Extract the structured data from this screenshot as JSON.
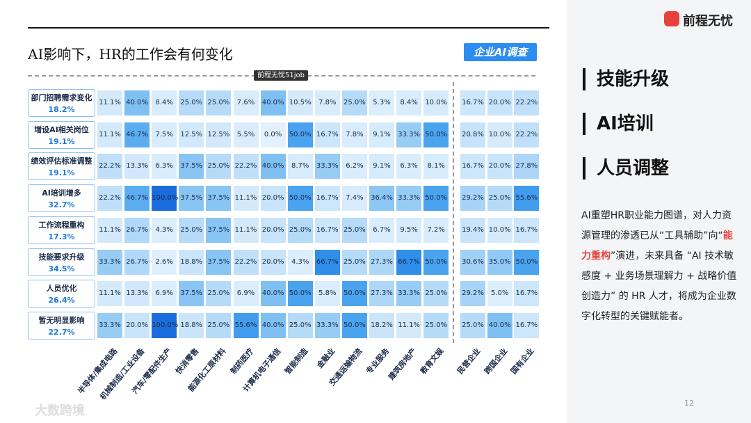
{
  "header": {
    "logo": "前程无忧",
    "title": "AI影响下，HR的工作会有何变化",
    "badge": "企业AI调查",
    "source": "前程无忧51job"
  },
  "table": {
    "columns": [
      "半导体/集成电路",
      "机械制造/工业设备",
      "汽车/零配件生产",
      "快消零售",
      "能源化工原材料",
      "制药医疗",
      "计算机电子通信",
      "智能制造",
      "金融业",
      "交通运输物流",
      "专业服务",
      "建筑房地产",
      "教育文娱",
      "民营企业",
      "跨国企业",
      "国有企业"
    ],
    "rows": [
      {
        "label": "部门招聘需求变化",
        "total": "18.2%",
        "cells": [
          "11.1%",
          "40.0%",
          "8.4%",
          "25.0%",
          "25.0%",
          "7.6%",
          "40.0%",
          "10.5%",
          "7.8%",
          "25.0%",
          "5.3%",
          "8.4%",
          "10.0%",
          "16.7%",
          "20.0%",
          "22.2%"
        ]
      },
      {
        "label": "增设AI相关岗位",
        "total": "19.1%",
        "cells": [
          "11.1%",
          "46.7%",
          "7.5%",
          "12.5%",
          "12.5%",
          "5.5%",
          "0.0%",
          "50.0%",
          "16.7%",
          "7.8%",
          "9.1%",
          "33.3%",
          "50.0%",
          "20.8%",
          "10.0%",
          "22.2%"
        ]
      },
      {
        "label": "绩效评估标准调整",
        "total": "19.1%",
        "cells": [
          "22.2%",
          "13.3%",
          "6.3%",
          "37.5%",
          "25.0%",
          "22.2%",
          "40.0%",
          "8.7%",
          "33.3%",
          "6.2%",
          "9.1%",
          "6.3%",
          "8.1%",
          "16.7%",
          "20.0%",
          "27.8%"
        ]
      },
      {
        "label": "AI培训增多",
        "total": "32.7%",
        "cells": [
          "22.2%",
          "46.7%",
          "100.0%",
          "37.5%",
          "37.5%",
          "11.1%",
          "20.0%",
          "50.0%",
          "16.7%",
          "7.4%",
          "36.4%",
          "33.3%",
          "50.0%",
          "29.2%",
          "25.0%",
          "55.6%"
        ]
      },
      {
        "label": "工作流程重构",
        "total": "17.3%",
        "cells": [
          "11.1%",
          "26.7%",
          "4.3%",
          "25.0%",
          "37.5%",
          "11.1%",
          "20.0%",
          "25.0%",
          "16.7%",
          "25.0%",
          "6.7%",
          "9.5%",
          "7.2%",
          "19.4%",
          "10.0%",
          "16.7%"
        ]
      },
      {
        "label": "技能要求升级",
        "total": "34.5%",
        "cells": [
          "33.3%",
          "26.7%",
          "2.6%",
          "18.8%",
          "37.5%",
          "22.2%",
          "20.0%",
          "4.3%",
          "66.7%",
          "25.0%",
          "27.3%",
          "66.7%",
          "50.0%",
          "30.6%",
          "35.0%",
          "50.0%"
        ]
      },
      {
        "label": "人员优化",
        "total": "26.4%",
        "cells": [
          "11.1%",
          "13.3%",
          "6.9%",
          "37.5%",
          "25.0%",
          "6.9%",
          "40.0%",
          "50.0%",
          "5.8%",
          "50.0%",
          "27.3%",
          "33.3%",
          "25.0%",
          "29.2%",
          "5.0%",
          "16.7%"
        ]
      },
      {
        "label": "暂无明显影响",
        "total": "22.7%",
        "cells": [
          "33.3%",
          "20.0%",
          "100.0%",
          "18.8%",
          "25.0%",
          "55.6%",
          "40.0%",
          "25.0%",
          "33.3%",
          "50.0%",
          "18.2%",
          "11.1%",
          "25.0%",
          "25.0%",
          "40.0%",
          "16.7%"
        ]
      }
    ]
  },
  "sidebar": {
    "keywords": [
      "技能升级",
      "AI培训",
      "人员调整"
    ],
    "paragraph": {
      "before": "AI重塑HR职业能力图谱，对人力资源管理的渗透已从“工具辅助”向“",
      "highlight": "能力重构",
      "after": "”演进，未来具备 “AI 技术敏感度 + 业务场景理解力 + 战略价值创造力” 的 HR 人才，将成为企业数字化转型的关键赋能者。"
    }
  },
  "footer": {
    "page": "12",
    "watermark": "大数跨境"
  }
}
